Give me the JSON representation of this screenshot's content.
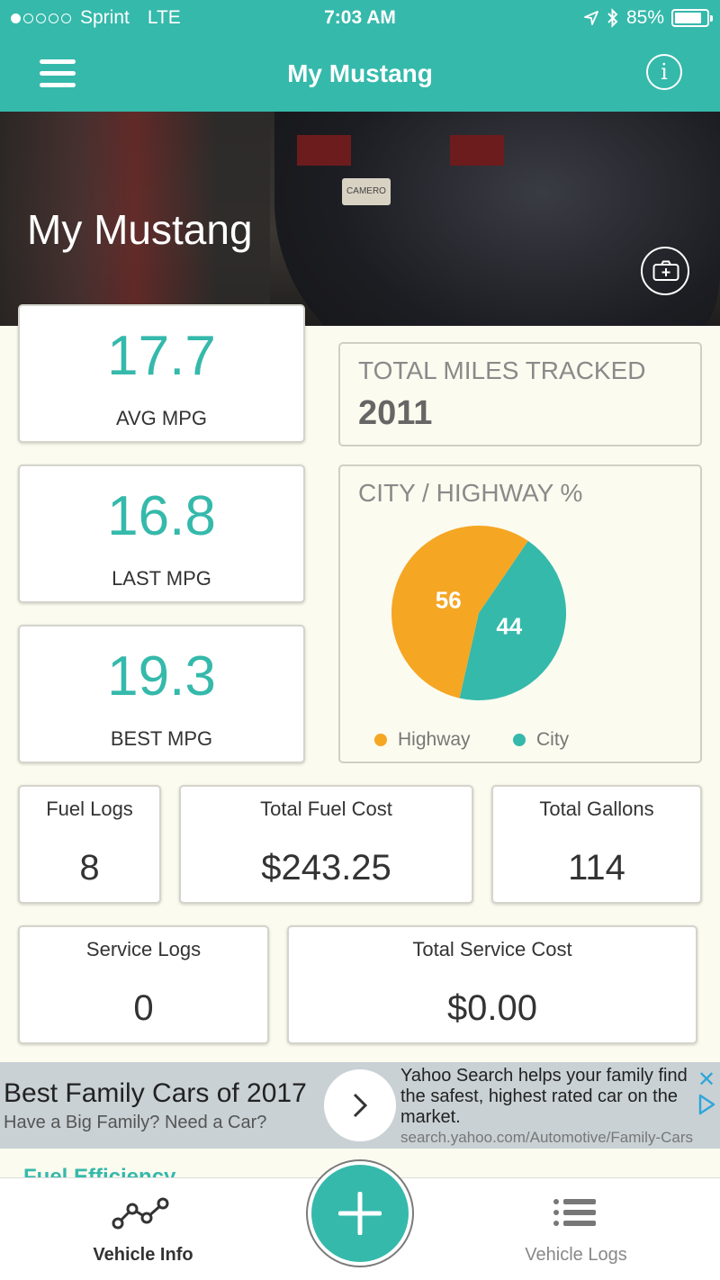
{
  "status_bar": {
    "carrier": "Sprint",
    "network": "LTE",
    "time": "7:03 AM",
    "battery": "85%",
    "signal_bars": 1,
    "battery_level": 0.85
  },
  "nav": {
    "title": "My Mustang",
    "menu_icon": "hamburger-icon",
    "info_icon": "info-icon"
  },
  "hero": {
    "title": "My Mustang",
    "plate_text": "CAMERO",
    "camera_icon": "camera-plus-icon"
  },
  "mpg": {
    "avg": {
      "value": "17.7",
      "label": "AVG MPG"
    },
    "last": {
      "value": "16.8",
      "label": "LAST MPG"
    },
    "best": {
      "value": "19.3",
      "label": "BEST MPG"
    }
  },
  "miles": {
    "label": "TOTAL MILES TRACKED",
    "value": "2011"
  },
  "city_highway": {
    "label": "CITY / HIGHWAY %"
  },
  "chart_data": {
    "type": "pie",
    "title": "CITY / HIGHWAY %",
    "categories": [
      "Highway",
      "City"
    ],
    "values": [
      56,
      44
    ],
    "colors": [
      "#f5a623",
      "#35b9ab"
    ],
    "legend": "bottom"
  },
  "stats": {
    "fuel_logs": {
      "label": "Fuel Logs",
      "value": "8"
    },
    "fuel_cost": {
      "label": "Total Fuel Cost",
      "value": "$243.25"
    },
    "gallons": {
      "label": "Total Gallons",
      "value": "114"
    },
    "service_logs": {
      "label": "Service Logs",
      "value": "0"
    },
    "service_cost": {
      "label": "Total Service Cost",
      "value": "$0.00"
    }
  },
  "ad": {
    "headline": "Best Family Cars of 2017",
    "sub": "Have a Big Family? Need a Car?",
    "desc1": "Yahoo Search helps your family find",
    "desc2": "the safest, highest rated car on the",
    "desc3": "market.",
    "url": "search.yahoo.com/Automotive/Family-Cars"
  },
  "peek_section": "Fuel Efficiency",
  "tabbar": {
    "vehicle_info": "Vehicle Info",
    "vehicle_logs": "Vehicle Logs",
    "add_icon": "plus-icon"
  },
  "colors": {
    "accent": "#35b9ab",
    "highway": "#f5a623",
    "city": "#35b9ab",
    "background": "#fbfbef"
  }
}
